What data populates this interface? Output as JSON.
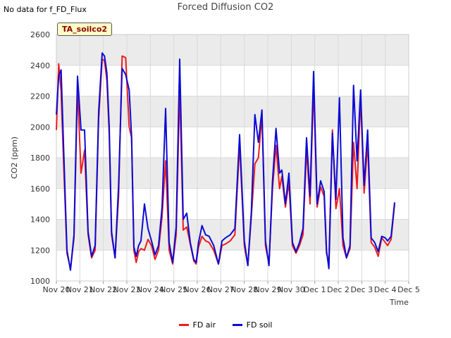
{
  "header": {
    "no_data_text": "No data for f_FD_Flux",
    "badge": "TA_soilco2"
  },
  "colors": {
    "FD air": "#ee1c1c",
    "FD soil": "#0b0bd6",
    "band": "#ebebeb"
  },
  "chart_data": {
    "type": "line",
    "title": "Forced Diffusion CO2",
    "xlabel": "Time",
    "ylabel": "CO2 (ppm)",
    "xlim": [
      "Nov 20",
      "Dec 5"
    ],
    "ylim": [
      1000,
      2600
    ],
    "yticks": [
      1000,
      1200,
      1400,
      1600,
      1800,
      2000,
      2200,
      2400,
      2600
    ],
    "xticks": [
      "Nov 20",
      "Nov 21",
      "Nov 22",
      "Nov 23",
      "Nov 24",
      "Nov 25",
      "Nov 26",
      "Nov 27",
      "Nov 28",
      "Nov 29",
      "Nov 30",
      "Dec 1",
      "Dec 2",
      "Dec 3",
      "Dec 4",
      "Dec 5"
    ],
    "grid": true,
    "legend": "bottom-center",
    "series": [
      {
        "name": "FD air",
        "x": [
          0.0,
          0.1,
          0.2,
          0.3,
          0.45,
          0.6,
          0.75,
          0.9,
          1.05,
          1.2,
          1.35,
          1.5,
          1.65,
          1.8,
          1.95,
          2.05,
          2.15,
          2.25,
          2.35,
          2.5,
          2.65,
          2.8,
          2.95,
          3.1,
          3.2,
          3.3,
          3.4,
          3.5,
          3.6,
          3.75,
          3.9,
          4.05,
          4.2,
          4.35,
          4.5,
          4.65,
          4.8,
          4.95,
          5.1,
          5.25,
          5.4,
          5.55,
          5.7,
          5.85,
          5.95,
          6.05,
          6.2,
          6.35,
          6.5,
          6.7,
          6.9,
          7.05,
          7.2,
          7.4,
          7.6,
          7.8,
          8.0,
          8.15,
          8.3,
          8.45,
          8.6,
          8.75,
          8.9,
          9.05,
          9.2,
          9.35,
          9.5,
          9.6,
          9.75,
          9.9,
          10.05,
          10.2,
          10.35,
          10.5,
          10.65,
          10.8,
          10.95,
          11.1,
          11.25,
          11.4,
          11.5,
          11.6,
          11.75,
          11.9,
          12.05,
          12.2,
          12.35,
          12.5,
          12.65,
          12.8,
          12.95,
          13.1,
          13.25,
          13.4,
          13.55,
          13.7,
          13.85,
          14.0,
          14.1,
          14.25,
          14.4
        ],
        "values": [
          1980,
          2410,
          2230,
          1800,
          1180,
          1080,
          1280,
          2250,
          1700,
          1850,
          1300,
          1150,
          1200,
          2050,
          2440,
          2430,
          2300,
          1950,
          1300,
          1150,
          1550,
          2460,
          2450,
          2000,
          1930,
          1200,
          1120,
          1190,
          1210,
          1200,
          1270,
          1230,
          1140,
          1200,
          1420,
          1780,
          1200,
          1110,
          1300,
          2250,
          1330,
          1350,
          1240,
          1130,
          1110,
          1220,
          1290,
          1260,
          1250,
          1200,
          1110,
          1230,
          1240,
          1260,
          1300,
          1890,
          1230,
          1100,
          1420,
          1760,
          1800,
          2080,
          1230,
          1110,
          1600,
          1880,
          1600,
          1680,
          1480,
          1640,
          1230,
          1180,
          1230,
          1300,
          1860,
          1500,
          2270,
          1480,
          1610,
          1550,
          1180,
          1120,
          1980,
          1470,
          1600,
          1230,
          1150,
          1210,
          1900,
          1600,
          2190,
          1570,
          1900,
          1250,
          1220,
          1160,
          1280,
          1250,
          1230,
          1270,
          1500
        ]
      },
      {
        "name": "FD soil",
        "x": [
          0.0,
          0.1,
          0.2,
          0.3,
          0.45,
          0.6,
          0.75,
          0.9,
          1.05,
          1.2,
          1.35,
          1.5,
          1.65,
          1.8,
          1.95,
          2.05,
          2.15,
          2.25,
          2.35,
          2.5,
          2.65,
          2.8,
          2.95,
          3.1,
          3.2,
          3.3,
          3.4,
          3.5,
          3.6,
          3.75,
          3.9,
          4.05,
          4.2,
          4.35,
          4.5,
          4.65,
          4.8,
          4.95,
          5.1,
          5.25,
          5.4,
          5.55,
          5.7,
          5.85,
          5.95,
          6.05,
          6.2,
          6.35,
          6.5,
          6.7,
          6.9,
          7.05,
          7.2,
          7.4,
          7.6,
          7.8,
          8.0,
          8.15,
          8.3,
          8.45,
          8.6,
          8.75,
          8.9,
          9.05,
          9.2,
          9.35,
          9.5,
          9.6,
          9.75,
          9.9,
          10.05,
          10.2,
          10.35,
          10.5,
          10.65,
          10.8,
          10.95,
          11.1,
          11.25,
          11.4,
          11.5,
          11.6,
          11.75,
          11.9,
          12.05,
          12.2,
          12.35,
          12.5,
          12.65,
          12.8,
          12.95,
          13.1,
          13.25,
          13.4,
          13.55,
          13.7,
          13.85,
          14.0,
          14.1,
          14.25,
          14.4
        ],
        "values": [
          2080,
          2330,
          2370,
          1900,
          1200,
          1070,
          1300,
          2330,
          1980,
          1980,
          1320,
          1160,
          1230,
          2100,
          2480,
          2460,
          2350,
          2000,
          1320,
          1150,
          1620,
          2380,
          2340,
          2240,
          1940,
          1220,
          1160,
          1230,
          1260,
          1500,
          1340,
          1260,
          1170,
          1230,
          1480,
          2120,
          1250,
          1120,
          1350,
          2440,
          1400,
          1440,
          1250,
          1140,
          1120,
          1250,
          1360,
          1300,
          1290,
          1230,
          1110,
          1260,
          1280,
          1300,
          1340,
          1950,
          1260,
          1100,
          1450,
          2080,
          1900,
          2110,
          1260,
          1100,
          1650,
          1990,
          1700,
          1720,
          1500,
          1700,
          1250,
          1190,
          1250,
          1340,
          1930,
          1550,
          2360,
          1500,
          1650,
          1580,
          1200,
          1080,
          1960,
          1530,
          2190,
          1280,
          1150,
          1230,
          2270,
          1780,
          2240,
          1620,
          1980,
          1280,
          1250,
          1190,
          1290,
          1280,
          1260,
          1290,
          1510
        ]
      }
    ]
  }
}
